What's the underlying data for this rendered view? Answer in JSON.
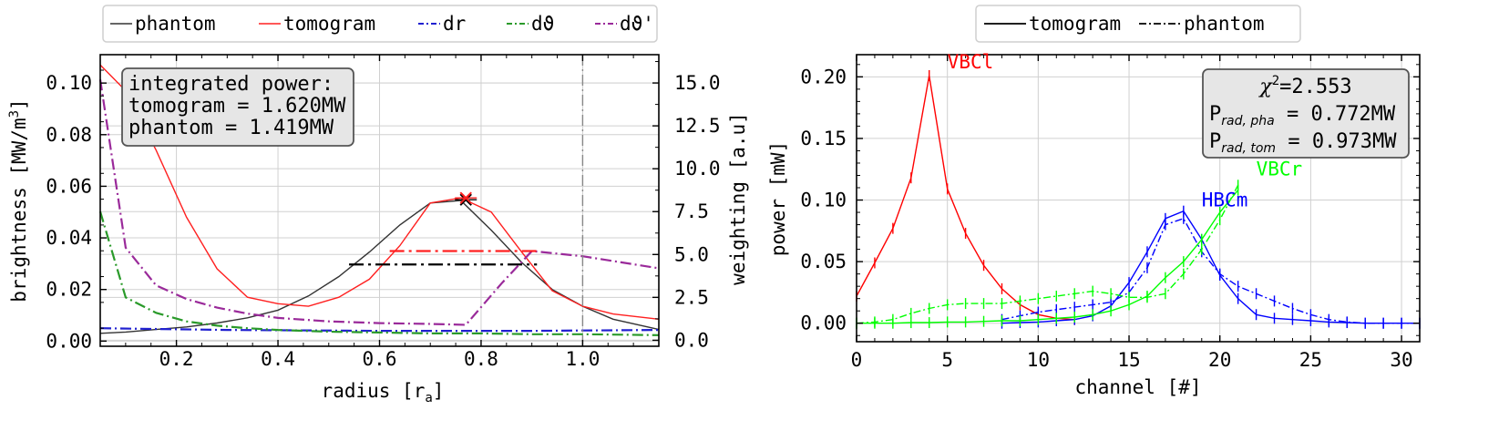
{
  "chart_data": [
    {
      "type": "line",
      "xlabel": "radius [r",
      "xlabel_sub": "a",
      "xlabel_end": "]",
      "ylabel_left": "brightness [MW/m",
      "ylabel_left_sup": "3",
      "ylabel_left_end": "]",
      "ylabel_right": "weighting [a.u]",
      "xlim": [
        0.05,
        1.15
      ],
      "ylim_left": [
        -0.002,
        0.111
      ],
      "ylim_right": [
        -0.35,
        16.65
      ],
      "x_ticks": [
        "0.2",
        "0.4",
        "0.6",
        "0.8",
        "1.0"
      ],
      "y_ticks_left": [
        "0.00",
        "0.02",
        "0.04",
        "0.06",
        "0.08",
        "0.10"
      ],
      "y_ticks_right": [
        "0.0",
        "2.5",
        "5.0",
        "7.5",
        "10.0",
        "12.5",
        "15.0"
      ],
      "legend": {
        "position": "above",
        "items": [
          {
            "label": "phantom",
            "color": "#333333",
            "style": "solid"
          },
          {
            "label": "tomogram",
            "color": "#ff2020",
            "style": "solid"
          },
          {
            "label": "dr",
            "color": "#2020d0",
            "style": "dashdot"
          },
          {
            "label": "dϑ",
            "color": "#2a9a2a",
            "style": "dashdot"
          },
          {
            "label": "dϑ'",
            "color": "#9a2a9a",
            "style": "dashdot"
          }
        ]
      },
      "info_box": {
        "lines": [
          "integrated power:",
          "tomogram = 1.620MW",
          "phantom = 1.419MW"
        ]
      },
      "series": [
        {
          "name": "phantom",
          "axis": "left",
          "color": "#333333",
          "style": "solid",
          "x": [
            0.05,
            0.1,
            0.16,
            0.22,
            0.28,
            0.34,
            0.4,
            0.46,
            0.52,
            0.58,
            0.64,
            0.7,
            0.76,
            0.82,
            0.88,
            0.94,
            1.0,
            1.06,
            1.15
          ],
          "y": [
            0.003,
            0.0035,
            0.0045,
            0.0055,
            0.007,
            0.009,
            0.012,
            0.0175,
            0.025,
            0.0345,
            0.045,
            0.0535,
            0.0545,
            0.043,
            0.0305,
            0.02,
            0.0135,
            0.0085,
            0.0045
          ]
        },
        {
          "name": "tomogram",
          "axis": "left",
          "color": "#ff2020",
          "style": "solid",
          "x": [
            0.05,
            0.1,
            0.16,
            0.22,
            0.28,
            0.34,
            0.4,
            0.46,
            0.52,
            0.58,
            0.64,
            0.7,
            0.76,
            0.82,
            0.88,
            0.94,
            1.0,
            1.06,
            1.15
          ],
          "y": [
            0.107,
            0.097,
            0.074,
            0.048,
            0.028,
            0.017,
            0.0145,
            0.0135,
            0.017,
            0.024,
            0.037,
            0.0535,
            0.0555,
            0.05,
            0.0345,
            0.0195,
            0.0135,
            0.0105,
            0.0085
          ]
        },
        {
          "name": "dr",
          "axis": "right",
          "color": "#2020d0",
          "style": "dashdot",
          "x": [
            0.05,
            0.3,
            0.6,
            0.9,
            1.15
          ],
          "y": [
            0.7,
            0.6,
            0.55,
            0.55,
            0.6
          ]
        },
        {
          "name": "dϑ",
          "axis": "right",
          "color": "#2a9a2a",
          "style": "dashdot",
          "x": [
            0.05,
            0.1,
            0.16,
            0.22,
            0.28,
            0.34,
            0.4,
            0.5,
            0.6,
            0.7,
            0.8,
            0.9,
            1.0,
            1.15
          ],
          "y": [
            7.5,
            2.5,
            1.6,
            1.1,
            0.85,
            0.7,
            0.6,
            0.5,
            0.45,
            0.4,
            0.4,
            0.35,
            0.35,
            0.3
          ]
        },
        {
          "name": "dϑ'",
          "axis": "right",
          "color": "#9a2a9a",
          "style": "dashdot",
          "x": [
            0.05,
            0.1,
            0.16,
            0.22,
            0.28,
            0.34,
            0.4,
            0.5,
            0.6,
            0.7,
            0.77,
            0.84,
            0.9,
            1.0,
            1.15
          ],
          "y": [
            15.2,
            5.4,
            3.2,
            2.4,
            1.9,
            1.55,
            1.3,
            1.1,
            1.0,
            0.95,
            0.9,
            3.3,
            5.2,
            4.9,
            4.2
          ]
        }
      ],
      "markers": [
        {
          "name": "phantom-peak",
          "x": 0.77,
          "y": 0.0548,
          "color": "#000000"
        },
        {
          "name": "tomogram-peak",
          "x": 0.77,
          "y": 0.0555,
          "color": "#ff2020"
        }
      ],
      "hlines": [
        {
          "name": "phantom-fwhm",
          "x0": 0.54,
          "x1": 0.91,
          "y": 0.0297,
          "color": "#000000"
        },
        {
          "name": "tomogram-fwhm",
          "x0": 0.62,
          "x1": 0.91,
          "y": 0.0349,
          "color": "#ff2020"
        }
      ],
      "vline": {
        "x": 1.0,
        "color": "#888888"
      }
    },
    {
      "type": "line",
      "xlabel": "channel [#]",
      "ylabel": "power [mW]",
      "xlim": [
        0,
        31
      ],
      "ylim": [
        -0.015,
        0.218
      ],
      "x_ticks": [
        "0",
        "5",
        "10",
        "15",
        "20",
        "25",
        "30"
      ],
      "y_ticks": [
        "0.00",
        "0.05",
        "0.10",
        "0.15",
        "0.20"
      ],
      "legend": {
        "position": "above",
        "items": [
          {
            "label": "tomogram",
            "color": "#000000",
            "style": "solid"
          },
          {
            "label": "phantom",
            "color": "#000000",
            "style": "dashdot"
          }
        ]
      },
      "info_box": {
        "chi": "χ",
        "chi_sup": "2",
        "chi_val": "=2.553",
        "p1": "P",
        "p1_sub": "rad, pha",
        "p1_val": " = 0.772MW",
        "p2": "P",
        "p2_sub": "rad, tom",
        "p2_val": " = 0.973MW"
      },
      "series": [
        {
          "name": "VBCl",
          "label_pos": [
            5,
            0.207
          ],
          "color": "#ff0000",
          "tomogram": {
            "x": [
              0,
              1,
              2,
              3,
              4,
              5,
              6,
              7,
              8,
              9,
              10,
              11,
              12
            ],
            "y": [
              0.022,
              0.049,
              0.077,
              0.118,
              0.201,
              0.109,
              0.073,
              0.047,
              0.028,
              0.015,
              0.007,
              0.004,
              0.003
            ]
          },
          "phantom": null
        },
        {
          "name": "HBCm",
          "label_pos": [
            19,
            0.095
          ],
          "color": "#0000ff",
          "tomogram": {
            "x": [
              8,
              9,
              10,
              11,
              12,
              13,
              14,
              15,
              16,
              17,
              18,
              19,
              20,
              21,
              22,
              23,
              24,
              25,
              26,
              27,
              28,
              29,
              30,
              31
            ],
            "y": [
              0.0,
              0.0005,
              0.001,
              0.002,
              0.003,
              0.006,
              0.014,
              0.033,
              0.058,
              0.085,
              0.091,
              0.068,
              0.039,
              0.02,
              0.007,
              0.004,
              0.003,
              0.002,
              0.001,
              0.0005,
              0.0,
              0.0,
              0.0,
              0.0
            ]
          },
          "phantom": {
            "x": [
              8,
              9,
              10,
              11,
              12,
              13,
              14,
              15,
              16,
              17,
              18,
              19,
              20,
              21,
              22,
              23,
              24,
              25,
              26,
              27,
              28,
              29,
              30,
              31
            ],
            "y": [
              0.003,
              0.006,
              0.009,
              0.011,
              0.013,
              0.015,
              0.017,
              0.025,
              0.045,
              0.08,
              0.085,
              0.058,
              0.04,
              0.03,
              0.024,
              0.018,
              0.012,
              0.007,
              0.003,
              0.001,
              0.0,
              0.0,
              0.0,
              0.0
            ]
          }
        },
        {
          "name": "VBCr",
          "label_pos": [
            22,
            0.12
          ],
          "color": "#00ff00",
          "tomogram": {
            "x": [
              0,
              1,
              2,
              3,
              4,
              5,
              6,
              7,
              8,
              9,
              10,
              11,
              12,
              13,
              14,
              15,
              16,
              17,
              18,
              19,
              20,
              21
            ],
            "y": [
              0.0,
              0.0,
              0.0,
              0.0005,
              0.0005,
              0.001,
              0.001,
              0.0015,
              0.002,
              0.002,
              0.003,
              0.004,
              0.005,
              0.007,
              0.01,
              0.015,
              0.022,
              0.037,
              0.05,
              0.068,
              0.09,
              0.108
            ]
          },
          "phantom": {
            "x": [
              0,
              1,
              2,
              3,
              4,
              5,
              6,
              7,
              8,
              9,
              10,
              11,
              12,
              13,
              14,
              15,
              16,
              17,
              18,
              19,
              20,
              21
            ],
            "y": [
              0.0,
              0.001,
              0.003,
              0.008,
              0.012,
              0.015,
              0.016,
              0.016,
              0.016,
              0.018,
              0.02,
              0.022,
              0.024,
              0.026,
              0.024,
              0.021,
              0.021,
              0.024,
              0.04,
              0.06,
              0.084,
              0.112
            ]
          }
        }
      ]
    }
  ]
}
